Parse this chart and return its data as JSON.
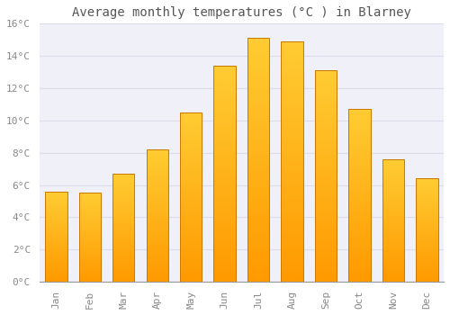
{
  "title": "Average monthly temperatures (°C ) in Blarney",
  "months": [
    "Jan",
    "Feb",
    "Mar",
    "Apr",
    "May",
    "Jun",
    "Jul",
    "Aug",
    "Sep",
    "Oct",
    "Nov",
    "Dec"
  ],
  "values": [
    5.6,
    5.5,
    6.7,
    8.2,
    10.5,
    13.4,
    15.1,
    14.9,
    13.1,
    10.7,
    7.6,
    6.4
  ],
  "bar_color": "#FFA500",
  "bar_edge_color": "#E08000",
  "background_color": "#FFFFFF",
  "plot_bg_color": "#F5F5FF",
  "grid_color": "#DDDDEE",
  "ylim": [
    0,
    16
  ],
  "yticks": [
    0,
    2,
    4,
    6,
    8,
    10,
    12,
    14,
    16
  ],
  "title_fontsize": 10,
  "tick_fontsize": 8,
  "tick_color": "#888888",
  "title_color": "#555555",
  "bar_width": 0.65
}
